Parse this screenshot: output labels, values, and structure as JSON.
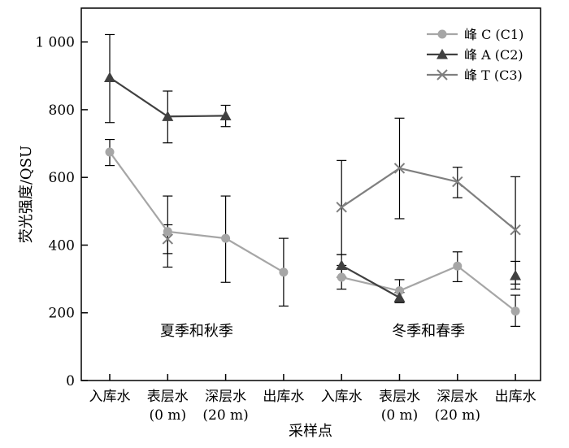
{
  "chart_data": {
    "type": "line",
    "xlabel": "采样点",
    "ylabel": "荧光强度/QSU",
    "ylim": [
      0,
      1100
    ],
    "yticks": [
      0,
      200,
      400,
      600,
      800,
      1000
    ],
    "ytick_labels": [
      "0",
      "200",
      "400",
      "600",
      "800",
      "1 000"
    ],
    "categories": [
      [
        "入库水"
      ],
      [
        "表层水",
        "(0 m)"
      ],
      [
        "深层水",
        "(20 m)"
      ],
      [
        "出库水"
      ],
      [
        "入库水"
      ],
      [
        "表层水",
        "(0 m)"
      ],
      [
        "深层水",
        "(20 m)"
      ],
      [
        "出库水"
      ]
    ],
    "groups": [
      {
        "label": "夏季和秋季",
        "categories": [
          0,
          1,
          2,
          3
        ]
      },
      {
        "label": "冬季和春季",
        "categories": [
          4,
          5,
          6,
          7
        ]
      }
    ],
    "legend_position": "top-right",
    "series": [
      {
        "name": "峰 C (C1)",
        "marker": "circle",
        "color": "#a6a6a6",
        "points": [
          {
            "x": 0,
            "y": 675,
            "err": [
              635,
              712
            ]
          },
          {
            "x": 1,
            "y": 440,
            "err": [
              335,
              545
            ]
          },
          {
            "x": 2,
            "y": 420,
            "err": [
              290,
              545
            ]
          },
          {
            "x": 3,
            "y": 320,
            "err": [
              220,
              420
            ]
          },
          {
            "x": 4,
            "y": 305,
            "err": [
              270,
              340
            ]
          },
          {
            "x": 5,
            "y": 265,
            "err": [
              230,
              298
            ]
          },
          {
            "x": 6,
            "y": 338,
            "err": [
              292,
              380
            ]
          },
          {
            "x": 7,
            "y": 205,
            "err": [
              160,
              252
            ]
          }
        ]
      },
      {
        "name": "峰 A (C2)",
        "marker": "triangle",
        "color": "#404040",
        "points": [
          {
            "x": 0,
            "y": 895,
            "err": [
              762,
              1022
            ]
          },
          {
            "x": 1,
            "y": 780,
            "err": [
              702,
              855
            ]
          },
          {
            "x": 2,
            "y": 782,
            "err": [
              750,
              813
            ]
          },
          {
            "x": 4,
            "y": 340,
            "err": [
              305,
              372
            ]
          },
          {
            "x": 5,
            "y": 245,
            "err": [
              232,
              260
            ]
          },
          {
            "x": 7,
            "y": 310,
            "err": [
              270,
              352
            ]
          }
        ]
      },
      {
        "name": "峰 T (C3)",
        "marker": "x",
        "color": "#7f7f7f",
        "points": [
          {
            "x": 1,
            "y": 418,
            "err": [
              375,
              460
            ]
          },
          {
            "x": 4,
            "y": 512,
            "err": [
              372,
              650
            ]
          },
          {
            "x": 5,
            "y": 627,
            "err": [
              478,
              775
            ]
          },
          {
            "x": 6,
            "y": 587,
            "err": [
              540,
              630
            ]
          },
          {
            "x": 7,
            "y": 445,
            "err": [
              285,
              602
            ]
          }
        ]
      }
    ],
    "lines": [
      {
        "series": 0,
        "x": [
          0,
          1,
          2,
          3
        ]
      },
      {
        "series": 0,
        "x": [
          4,
          5,
          6,
          7
        ]
      },
      {
        "series": 1,
        "x": [
          0,
          1,
          2
        ]
      },
      {
        "series": 1,
        "x": [
          4,
          5
        ]
      },
      {
        "series": 2,
        "x": [
          4,
          5,
          6,
          7
        ]
      }
    ]
  }
}
